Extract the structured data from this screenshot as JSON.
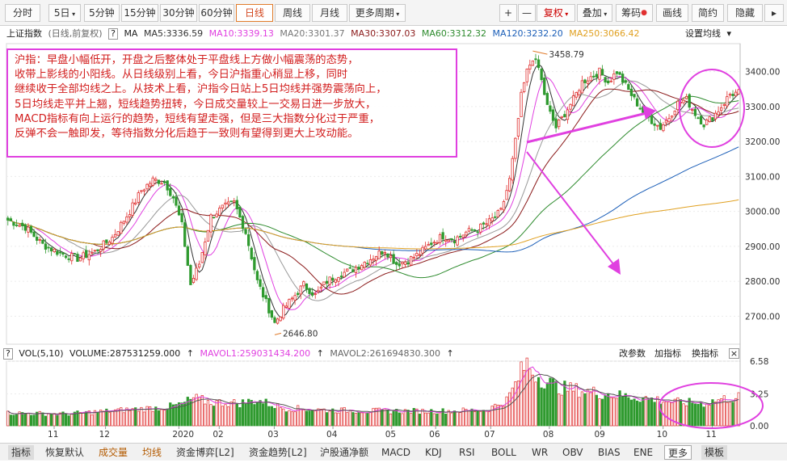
{
  "toolbar": {
    "periods": [
      "分时",
      "5日",
      "5分钟",
      "15分钟",
      "30分钟",
      "60分钟",
      "日线",
      "周线",
      "月线",
      "更多周期"
    ],
    "active_period": "日线",
    "plus": "+",
    "minus": "—",
    "fuquan": "复权",
    "overlay": "叠加",
    "chip": "筹码",
    "draw": "画线",
    "simple": "简约",
    "hide": "隐藏"
  },
  "info": {
    "index_name": "上证指数",
    "mode": "(日线,前复权)",
    "help": "?",
    "ma_label": "MA",
    "ma5": "MA5:3336.59",
    "ma10": "MA10:3339.13",
    "ma20": "MA20:3301.37",
    "ma30": "MA30:3307.03",
    "ma60": "MA60:3312.32",
    "ma120": "MA120:3232.20",
    "ma250": "MA250:3066.42",
    "settings": "设置均线"
  },
  "volume_info": {
    "label": "VOL(5,10)",
    "volume": "VOLUME:287531259.000",
    "mavol1": "MAVOL1:259031434.200",
    "mavol2": "MAVOL2:261694830.300",
    "change_params": "改参数",
    "add_indicator": "加指标",
    "switch_indicator": "换指标"
  },
  "annotation": {
    "lines": [
      "沪指：早盘小幅低开，开盘之后整体处于平盘线上方做小幅震荡的态势，",
      "收带上影线的小阳线。从日线级别上看，今日沪指重心稍显上移，同时",
      "继续收于全部均线之上。从技术上看，沪指今日站上5日均线并强势震荡向上，",
      "5日均线走平并上翘，短线趋势扭转，今日成交量较上一交易日进一步放大，",
      "MACD指标有向上运行的趋势，短线有望走强，但是三大指数分化过于严重，",
      "反弹不会一触即发，等待指数分化后趋于一致则有望得到更大上攻动能。"
    ]
  },
  "bottom_tabs": [
    "指标",
    "恢复默认",
    "成交量",
    "均线",
    "资金博弈[L2]",
    "资金趋势[L2]",
    "沪股通净额",
    "MACD",
    "KDJ",
    "RSI",
    "BOLL",
    "WR",
    "OBV",
    "BIAS",
    "ENE",
    "更多",
    "模板"
  ],
  "colors": {
    "up": "#e03030",
    "down": "#2f9a2f",
    "ma5": "#333333",
    "ma10": "#e040e0",
    "ma20": "#999999",
    "ma30": "#8b1a1a",
    "ma60": "#2e8b2e",
    "ma120": "#1c5fb8",
    "ma250": "#e0a020",
    "accent": "#e07b2b",
    "marker": "#e040e0"
  },
  "chart_data": {
    "type": "candlestick",
    "ylim": [
      2620,
      3480
    ],
    "yticks": [
      2700,
      2800,
      2900,
      3000,
      3100,
      3200,
      3300,
      3400
    ],
    "ytick_labels": [
      "2700.00",
      "2800.00",
      "2900.00",
      "3000.00",
      "3100.00",
      "3200.00",
      "3300.00",
      "3400.00"
    ],
    "xtick_labels": [
      "11",
      "12",
      "2020",
      "02",
      "03",
      "04",
      "05",
      "06",
      "07",
      "08",
      "09",
      "10",
      "11"
    ],
    "high_label": "3458.79",
    "high_value": 3458.79,
    "low_label": "2646.80",
    "low_value": 2646.8,
    "close_keypoints": [
      [
        0,
        2975
      ],
      [
        6,
        2955
      ],
      [
        12,
        2905
      ],
      [
        18,
        2880
      ],
      [
        24,
        2865
      ],
      [
        30,
        2885
      ],
      [
        36,
        2925
      ],
      [
        42,
        3000
      ],
      [
        46,
        3060
      ],
      [
        50,
        3090
      ],
      [
        54,
        3085
      ],
      [
        57,
        3040
      ],
      [
        60,
        2960
      ],
      [
        63,
        2790
      ],
      [
        66,
        2850
      ],
      [
        70,
        2985
      ],
      [
        74,
        3010
      ],
      [
        78,
        3025
      ],
      [
        82,
        2940
      ],
      [
        86,
        2800
      ],
      [
        89,
        2740
      ],
      [
        92,
        2680
      ],
      [
        95,
        2720
      ],
      [
        98,
        2750
      ],
      [
        102,
        2790
      ],
      [
        106,
        2760
      ],
      [
        110,
        2800
      ],
      [
        114,
        2820
      ],
      [
        118,
        2830
      ],
      [
        122,
        2850
      ],
      [
        126,
        2870
      ],
      [
        130,
        2890
      ],
      [
        134,
        2850
      ],
      [
        138,
        2860
      ],
      [
        142,
        2880
      ],
      [
        146,
        2910
      ],
      [
        150,
        2930
      ],
      [
        154,
        2920
      ],
      [
        158,
        2940
      ],
      [
        162,
        2950
      ],
      [
        166,
        2970
      ],
      [
        170,
        3000
      ],
      [
        173,
        3090
      ],
      [
        175,
        3200
      ],
      [
        177,
        3330
      ],
      [
        179,
        3400
      ],
      [
        181,
        3440
      ],
      [
        183,
        3410
      ],
      [
        186,
        3300
      ],
      [
        189,
        3240
      ],
      [
        192,
        3280
      ],
      [
        195,
        3320
      ],
      [
        198,
        3370
      ],
      [
        201,
        3385
      ],
      [
        204,
        3400
      ],
      [
        207,
        3370
      ],
      [
        210,
        3400
      ],
      [
        213,
        3360
      ],
      [
        216,
        3320
      ],
      [
        219,
        3285
      ],
      [
        222,
        3260
      ],
      [
        225,
        3240
      ],
      [
        228,
        3270
      ],
      [
        231,
        3310
      ],
      [
        234,
        3320
      ],
      [
        237,
        3280
      ],
      [
        240,
        3250
      ],
      [
        243,
        3270
      ],
      [
        246,
        3300
      ],
      [
        249,
        3335
      ],
      [
        252,
        3340
      ]
    ],
    "volume_ylim": [
      0,
      6.58
    ],
    "volume_tick_labels": [
      "6.58",
      "3.25",
      "0.00"
    ],
    "volume_keypoints": [
      [
        0,
        1.3
      ],
      [
        20,
        1.2
      ],
      [
        40,
        1.6
      ],
      [
        55,
        1.9
      ],
      [
        60,
        2.2
      ],
      [
        64,
        2.8
      ],
      [
        70,
        2.4
      ],
      [
        80,
        2.3
      ],
      [
        86,
        2.6
      ],
      [
        95,
        1.8
      ],
      [
        110,
        1.6
      ],
      [
        130,
        1.5
      ],
      [
        150,
        1.5
      ],
      [
        165,
        1.6
      ],
      [
        172,
        2.6
      ],
      [
        175,
        4.2
      ],
      [
        177,
        5.5
      ],
      [
        179,
        6.4
      ],
      [
        181,
        5.5
      ],
      [
        184,
        4.8
      ],
      [
        190,
        3.9
      ],
      [
        200,
        3.5
      ],
      [
        210,
        3.1
      ],
      [
        220,
        2.8
      ],
      [
        230,
        2.4
      ],
      [
        240,
        2.3
      ],
      [
        246,
        2.7
      ],
      [
        252,
        2.9
      ]
    ],
    "series": [
      {
        "name": "MA5"
      },
      {
        "name": "MA10"
      },
      {
        "name": "MA20"
      },
      {
        "name": "MA30"
      },
      {
        "name": "MA60"
      },
      {
        "name": "MA120"
      },
      {
        "name": "MA250"
      }
    ]
  }
}
